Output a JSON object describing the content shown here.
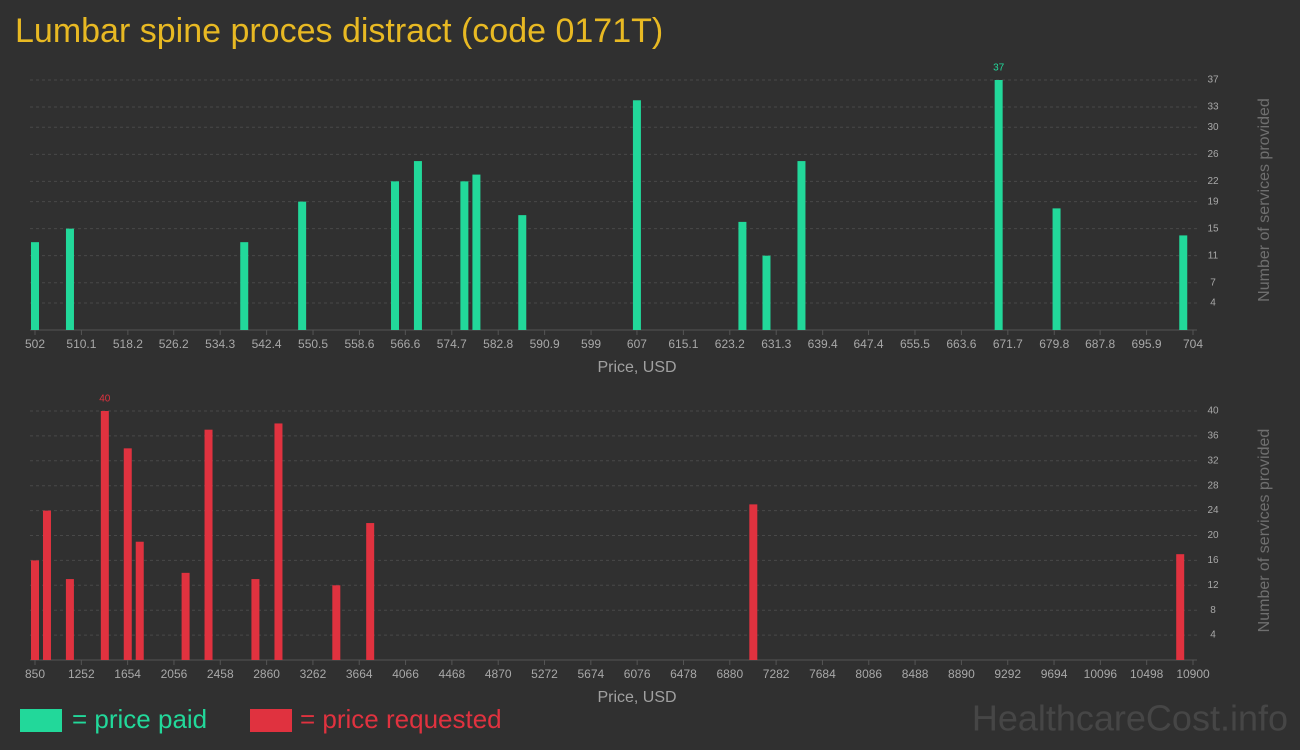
{
  "title": "Lumbar spine proces distract (code 0171T)",
  "legend": [
    "= price paid",
    "= price requested"
  ],
  "watermark": "HealthcareCost.info",
  "chart_data": [
    {
      "type": "bar",
      "color": "#22d89a",
      "xlabel": "Price, USD",
      "ylabel": "Number of services provided",
      "x": [
        502,
        508.1,
        538.5,
        548.6,
        564.8,
        568.8,
        576.9,
        579,
        587,
        607,
        625.4,
        629.6,
        635.7,
        670.1,
        680.2,
        702.3
      ],
      "values": [
        13,
        15,
        13,
        19,
        22,
        25,
        22,
        23,
        17,
        34,
        16,
        11,
        25,
        37,
        18,
        14
      ],
      "xlim": [
        502,
        704
      ],
      "ylim": [
        0,
        37
      ],
      "xticks": [
        502,
        510.1,
        518.2,
        526.2,
        534.3,
        542.4,
        550.5,
        558.6,
        566.6,
        574.7,
        582.8,
        590.9,
        599,
        607,
        615.1,
        623.2,
        631.3,
        639.4,
        647.4,
        655.5,
        663.6,
        671.7,
        679.8,
        687.8,
        695.9,
        704
      ],
      "yticks": [
        4,
        7,
        11,
        15,
        19,
        22,
        26,
        30,
        33,
        37
      ],
      "grid": true
    },
    {
      "type": "bar",
      "color": "#e0323f",
      "xlabel": "Price, USD",
      "ylabel": "Number of services provided",
      "x": [
        850,
        954,
        1153,
        1456,
        1655,
        1759,
        2157,
        2356,
        2763,
        2963,
        3465,
        3759,
        7084,
        10789
      ],
      "values": [
        16,
        24,
        13,
        40,
        34,
        19,
        14,
        37,
        13,
        38,
        12,
        22,
        25,
        17
      ],
      "xlim": [
        850,
        10900
      ],
      "ylim": [
        0,
        40
      ],
      "xticks": [
        850,
        1252,
        1654,
        2056,
        2458,
        2860,
        3262,
        3664,
        4066,
        4468,
        4870,
        5272,
        5674,
        6076,
        6478,
        6880,
        7282,
        7684,
        8086,
        8488,
        8890,
        9292,
        9694,
        10096,
        10498,
        10900
      ],
      "yticks": [
        4,
        8,
        12,
        16,
        20,
        24,
        28,
        32,
        36,
        40
      ],
      "grid": true
    }
  ]
}
